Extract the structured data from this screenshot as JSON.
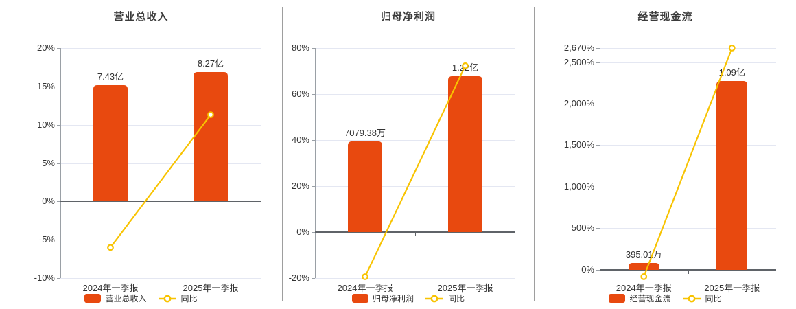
{
  "colors": {
    "bar": "#e8490f",
    "line": "#f8c301",
    "marker_fill": "#ffffff",
    "grid": "#e4e7f2",
    "zero_line": "#5f6368",
    "y_axis": "#9aa0a6",
    "text": "#333333",
    "title": "#3b3b3b",
    "divider": "#9e9e9e",
    "background": "#ffffff"
  },
  "chart_data": [
    {
      "type": "bar",
      "title": "营业总收入",
      "categories": [
        "2024年一季报",
        "2025年一季报"
      ],
      "ylim": [
        -10,
        20
      ],
      "y_ticks": {
        "labels": [
          "20%",
          "15%",
          "10%",
          "5%",
          "0%",
          "-5%",
          "-10%"
        ],
        "values": [
          20,
          15,
          10,
          5,
          0,
          -5,
          -10
        ]
      },
      "grid": true,
      "legend_position": "bottom",
      "legend": [
        "营业总收入",
        "同比"
      ],
      "series": [
        {
          "name": "营业总收入",
          "type": "bar",
          "value_labels": [
            "7.43亿",
            "8.27亿"
          ],
          "bar_top_axis_values": [
            15.15,
            16.87
          ]
        },
        {
          "name": "同比",
          "type": "line",
          "values_pct": [
            -6.0,
            11.3
          ]
        }
      ]
    },
    {
      "type": "bar",
      "title": "归母净利润",
      "categories": [
        "2024年一季报",
        "2025年一季报"
      ],
      "ylim": [
        -20,
        80
      ],
      "y_ticks": {
        "labels": [
          "80%",
          "60%",
          "40%",
          "20%",
          "0%",
          "-20%"
        ],
        "values": [
          80,
          60,
          40,
          20,
          0,
          -20
        ]
      },
      "grid": true,
      "legend_position": "bottom",
      "legend": [
        "归母净利润",
        "同比"
      ],
      "series": [
        {
          "name": "归母净利润",
          "type": "bar",
          "value_labels": [
            "7079.38万",
            "1.22亿"
          ],
          "bar_top_axis_values": [
            39.3,
            67.8
          ]
        },
        {
          "name": "同比",
          "type": "line",
          "values_pct": [
            -19.4,
            72.3
          ]
        }
      ]
    },
    {
      "type": "bar",
      "title": "经营现金流",
      "categories": [
        "2024年一季报",
        "2025年一季报"
      ],
      "ylim": [
        -100,
        2670
      ],
      "y_ticks": {
        "labels": [
          "2,670%",
          "2,500%",
          "2,000%",
          "1,500%",
          "1,000%",
          "500%",
          "0%"
        ],
        "values": [
          2670,
          2500,
          2000,
          1500,
          1000,
          500,
          0
        ]
      },
      "grid": true,
      "legend_position": "bottom",
      "legend": [
        "经营现金流",
        "同比"
      ],
      "series": [
        {
          "name": "经营现金流",
          "type": "bar",
          "value_labels": [
            "395.01万",
            "1.09亿"
          ],
          "bar_top_axis_values": [
            82.5,
            2276
          ]
        },
        {
          "name": "同比",
          "type": "line",
          "values_pct": [
            -83,
            2670
          ]
        }
      ]
    }
  ]
}
